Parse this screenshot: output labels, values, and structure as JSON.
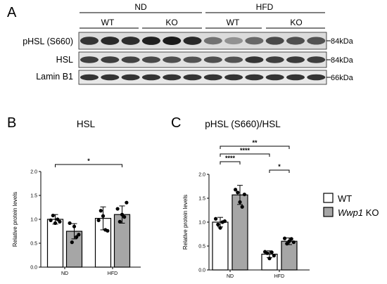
{
  "panel_labels": [
    "A",
    "B",
    "C"
  ],
  "blot": {
    "diets": [
      "ND",
      "HFD"
    ],
    "genotypes": [
      "WT",
      "KO"
    ],
    "rows": [
      {
        "protein": "pHSL (S660)",
        "mw": "84kDa",
        "intensity": [
          0.85,
          0.9,
          0.88,
          0.95,
          0.97,
          0.9,
          0.55,
          0.4,
          0.6,
          0.75,
          0.72,
          0.7
        ]
      },
      {
        "protein": "HSL",
        "mw": "84kDa",
        "intensity": [
          0.8,
          0.8,
          0.78,
          0.75,
          0.72,
          0.7,
          0.72,
          0.7,
          0.85,
          0.8,
          0.82,
          0.8
        ]
      },
      {
        "protein": "Lamin B1",
        "mw": "66kDa",
        "intensity": [
          0.85,
          0.85,
          0.85,
          0.85,
          0.85,
          0.85,
          0.85,
          0.85,
          0.85,
          0.85,
          0.85,
          0.85
        ]
      }
    ]
  },
  "legend": {
    "items": [
      {
        "label_main": "WT",
        "label_italic": "",
        "label_suffix": "",
        "color": "#ffffff"
      },
      {
        "label_main": "",
        "label_italic": "Wwp1",
        "label_suffix": " KO",
        "color": "#a6a6a6"
      }
    ]
  },
  "chart_data": [
    {
      "type": "bar",
      "panel": "B",
      "title": "HSL",
      "ylabel": "Relative protein levels",
      "xlabel": "",
      "ylim": [
        0,
        2.0
      ],
      "yticks": [
        "0.0",
        "0.5",
        "1.0",
        "1.5",
        "2.0"
      ],
      "categories": [
        "ND",
        "HFD"
      ],
      "series": [
        {
          "name": "WT",
          "color": "#ffffff",
          "values": [
            1.0,
            1.02
          ],
          "error": [
            0.1,
            0.24
          ],
          "points": [
            [
              0.98,
              1.08,
              0.92,
              1.0,
              0.95
            ],
            [
              0.98,
              1.18,
              1.07,
              0.78,
              0.76
            ]
          ]
        },
        {
          "name": "Wwp1 KO",
          "color": "#a6a6a6",
          "values": [
            0.75,
            1.1
          ],
          "error": [
            0.16,
            0.18
          ],
          "points": [
            [
              0.92,
              0.52,
              0.85,
              0.63,
              0.68
            ],
            [
              1.22,
              0.95,
              1.1,
              1.05,
              1.35
            ]
          ]
        }
      ],
      "significance": [
        {
          "label": "*",
          "from": "WT-ND",
          "to": "KO-HFD"
        }
      ]
    },
    {
      "type": "bar",
      "panel": "C",
      "title": "pHSL (S660)/HSL",
      "ylabel": "Relative protein levels",
      "xlabel": "",
      "ylim": [
        0,
        2.0
      ],
      "yticks": [
        "0.0",
        "0.5",
        "1.0",
        "1.5",
        "2.0"
      ],
      "categories": [
        "ND",
        "HFD"
      ],
      "series": [
        {
          "name": "WT",
          "color": "#ffffff",
          "values": [
            1.0,
            0.33
          ],
          "error": [
            0.1,
            0.07
          ],
          "points": [
            [
              1.07,
              0.95,
              0.88,
              1.0,
              1.02
            ],
            [
              0.38,
              0.35,
              0.24,
              0.37,
              0.3
            ]
          ]
        },
        {
          "name": "Wwp1 KO",
          "color": "#a6a6a6",
          "values": [
            1.57,
            0.6
          ],
          "error": [
            0.2,
            0.07
          ],
          "points": [
            [
              1.68,
              1.62,
              1.42,
              1.32,
              1.58
            ],
            [
              0.66,
              0.55,
              0.6,
              0.65,
              0.58
            ]
          ]
        }
      ],
      "significance": [
        {
          "label": "**",
          "from": "WT-ND",
          "to": "KO-HFD"
        },
        {
          "label": "****",
          "from": "WT-ND",
          "to": "WT-HFD"
        },
        {
          "label": "****",
          "from": "WT-ND",
          "to": "KO-ND"
        },
        {
          "label": "*",
          "from": "WT-HFD",
          "to": "KO-HFD"
        }
      ]
    }
  ]
}
